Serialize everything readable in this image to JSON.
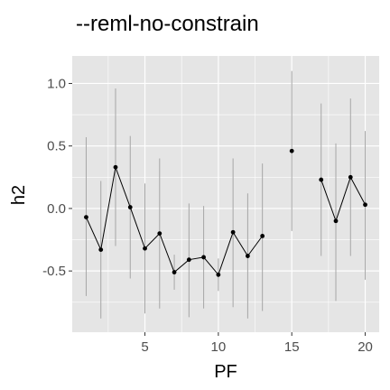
{
  "chart_data": {
    "type": "scatter",
    "title": "--reml-no-constrain",
    "xlabel": "PF",
    "ylabel": "h2",
    "xlim": [
      0.05,
      20.95
    ],
    "ylim": [
      -0.99,
      1.22
    ],
    "x_ticks": [
      5,
      10,
      15,
      20
    ],
    "x_tick_labels": [
      "5",
      "10",
      "15",
      "20"
    ],
    "y_ticks": [
      -0.5,
      0.0,
      0.5,
      1.0
    ],
    "y_tick_labels": [
      "-0.5",
      "0.0",
      "0.5",
      "1.0"
    ],
    "grid": true,
    "legend": "none",
    "colors": {
      "panel_background": "#e5e5e5",
      "grid": "#ffffff",
      "points": "#000000",
      "line": "#000000",
      "error_bars": "#a6a6a6"
    },
    "points": [
      {
        "x": 1,
        "y": -0.07,
        "low": -0.7,
        "high": 0.57
      },
      {
        "x": 2,
        "y": -0.33,
        "low": -0.88,
        "high": 0.22
      },
      {
        "x": 3,
        "y": 0.33,
        "low": -0.3,
        "high": 0.96
      },
      {
        "x": 4,
        "y": 0.01,
        "low": -0.56,
        "high": 0.58
      },
      {
        "x": 5,
        "y": -0.32,
        "low": -0.84,
        "high": 0.2
      },
      {
        "x": 6,
        "y": -0.2,
        "low": -0.8,
        "high": 0.4
      },
      {
        "x": 7,
        "y": -0.51,
        "low": -0.65,
        "high": -0.37
      },
      {
        "x": 8,
        "y": -0.41,
        "low": -0.87,
        "high": 0.04
      },
      {
        "x": 9,
        "y": -0.39,
        "low": -0.8,
        "high": 0.02
      },
      {
        "x": 10,
        "y": -0.53,
        "low": -0.66,
        "high": -0.4
      },
      {
        "x": 11,
        "y": -0.19,
        "low": -0.79,
        "high": 0.4
      },
      {
        "x": 12,
        "y": -0.38,
        "low": -0.88,
        "high": 0.12
      },
      {
        "x": 13,
        "y": -0.22,
        "low": -0.82,
        "high": 0.36
      },
      {
        "x": 15,
        "y": 0.46,
        "low": -0.18,
        "high": 1.1
      },
      {
        "x": 17,
        "y": 0.23,
        "low": -0.38,
        "high": 0.84
      },
      {
        "x": 18,
        "y": -0.1,
        "low": -0.74,
        "high": 0.52
      },
      {
        "x": 19,
        "y": 0.25,
        "low": -0.38,
        "high": 0.88
      },
      {
        "x": 20,
        "y": 0.03,
        "low": -0.57,
        "high": 0.62
      }
    ],
    "line_segments": [
      [
        1,
        2,
        3,
        4,
        5,
        6,
        7,
        8,
        9,
        10,
        11,
        12,
        13
      ],
      [
        17,
        18,
        19,
        20
      ]
    ]
  }
}
